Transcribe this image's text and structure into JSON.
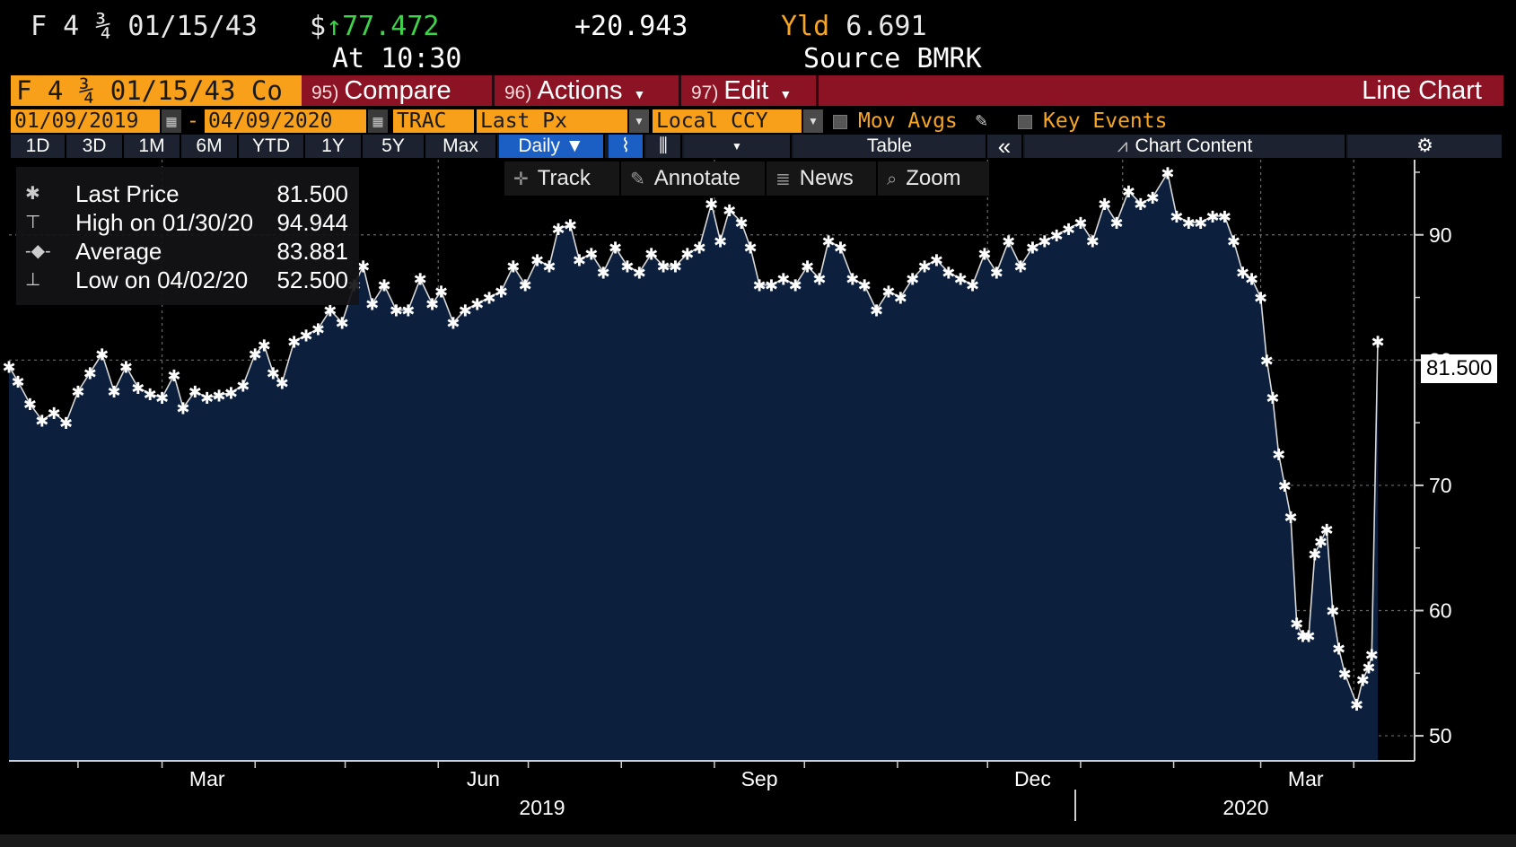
{
  "quote": {
    "security": "F 4 ¾ 01/15/43",
    "currency_symbol": "$",
    "last_price": "↑77.472",
    "change": "+20.943",
    "yield_label": "Yld",
    "yield_value": "6.691",
    "time": "At 10:30",
    "source": "Source BMRK"
  },
  "titlebar": {
    "ticker": "F 4 ¾ 01/15/43 Co",
    "compare_num": "95)",
    "compare": "Compare",
    "actions_num": "96)",
    "actions": "Actions",
    "edit_num": "97)",
    "edit": "Edit",
    "chart_type": "Line Chart"
  },
  "settings": {
    "start_date": "01/09/2019",
    "dash": "-",
    "end_date": "04/09/2020",
    "source": "TRAC",
    "field": "Last Px",
    "currency": "Local CCY",
    "mov_avgs": "Mov Avgs",
    "key_events": "Key Events"
  },
  "ranges": [
    "1D",
    "3D",
    "1M",
    "6M",
    "YTD",
    "1Y",
    "5Y",
    "Max"
  ],
  "period": "Daily ▼",
  "table_label": "Table",
  "chart_content_label": "Chart Content",
  "toolbar": {
    "track": "Track",
    "annotate": "Annotate",
    "news": "News",
    "zoom": "Zoom"
  },
  "legend": [
    {
      "icon": "✱",
      "label": "Last Price",
      "value": "81.500"
    },
    {
      "icon": "⊤",
      "label": "High on 01/30/20",
      "value": "94.944"
    },
    {
      "icon": "-◆-",
      "label": "Average",
      "value": "83.881"
    },
    {
      "icon": "⊥",
      "label": "Low on 04/02/20",
      "value": "52.500"
    }
  ],
  "price_tag": "81.500",
  "colors": {
    "fill": "#0c1f3d",
    "amber": "#f8a01a",
    "titlebar": "#8c1323",
    "green": "#3ed34a"
  },
  "chart_data": {
    "type": "area",
    "ylim": [
      48,
      96
    ],
    "y_ticks": [
      50,
      60,
      70,
      80,
      90
    ],
    "x_month_labels": [
      "Mar",
      "Jun",
      "Sep",
      "Dec",
      "Mar"
    ],
    "x_year_labels": [
      "2019",
      "2020"
    ],
    "grid": true,
    "x_start": "2019-01-09",
    "x_end": "2020-04-09",
    "series": [
      {
        "points": [
          [
            "2019-01-09",
            79.5
          ],
          [
            "2019-01-12",
            78.3
          ],
          [
            "2019-01-16",
            76.5
          ],
          [
            "2019-01-20",
            75.2
          ],
          [
            "2019-01-24",
            75.8
          ],
          [
            "2019-01-28",
            75.0
          ],
          [
            "2019-02-01",
            77.5
          ],
          [
            "2019-02-05",
            79.0
          ],
          [
            "2019-02-09",
            80.5
          ],
          [
            "2019-02-13",
            77.5
          ],
          [
            "2019-02-17",
            79.5
          ],
          [
            "2019-02-21",
            77.8
          ],
          [
            "2019-02-25",
            77.3
          ],
          [
            "2019-03-01",
            77.0
          ],
          [
            "2019-03-05",
            78.8
          ],
          [
            "2019-03-08",
            76.2
          ],
          [
            "2019-03-12",
            77.5
          ],
          [
            "2019-03-16",
            77.0
          ],
          [
            "2019-03-20",
            77.2
          ],
          [
            "2019-03-24",
            77.4
          ],
          [
            "2019-03-28",
            78.0
          ],
          [
            "2019-04-01",
            80.5
          ],
          [
            "2019-04-04",
            81.2
          ],
          [
            "2019-04-07",
            79.0
          ],
          [
            "2019-04-10",
            78.2
          ],
          [
            "2019-04-14",
            81.5
          ],
          [
            "2019-04-18",
            82.0
          ],
          [
            "2019-04-22",
            82.5
          ],
          [
            "2019-04-26",
            84.0
          ],
          [
            "2019-04-30",
            83.0
          ],
          [
            "2019-05-04",
            86.0
          ],
          [
            "2019-05-07",
            87.5
          ],
          [
            "2019-05-10",
            84.5
          ],
          [
            "2019-05-14",
            86.0
          ],
          [
            "2019-05-18",
            84.0
          ],
          [
            "2019-05-22",
            84.0
          ],
          [
            "2019-05-26",
            86.5
          ],
          [
            "2019-05-30",
            84.5
          ],
          [
            "2019-06-02",
            85.5
          ],
          [
            "2019-06-06",
            83.0
          ],
          [
            "2019-06-10",
            84.0
          ],
          [
            "2019-06-14",
            84.5
          ],
          [
            "2019-06-18",
            85.0
          ],
          [
            "2019-06-22",
            85.5
          ],
          [
            "2019-06-26",
            87.5
          ],
          [
            "2019-06-30",
            86.0
          ],
          [
            "2019-07-04",
            88.0
          ],
          [
            "2019-07-08",
            87.5
          ],
          [
            "2019-07-11",
            90.5
          ],
          [
            "2019-07-15",
            90.8
          ],
          [
            "2019-07-18",
            88.0
          ],
          [
            "2019-07-22",
            88.5
          ],
          [
            "2019-07-26",
            87.0
          ],
          [
            "2019-07-30",
            89.0
          ],
          [
            "2019-08-03",
            87.5
          ],
          [
            "2019-08-07",
            87.0
          ],
          [
            "2019-08-11",
            88.5
          ],
          [
            "2019-08-15",
            87.5
          ],
          [
            "2019-08-19",
            87.5
          ],
          [
            "2019-08-23",
            88.5
          ],
          [
            "2019-08-27",
            89.0
          ],
          [
            "2019-08-31",
            92.5
          ],
          [
            "2019-09-03",
            89.5
          ],
          [
            "2019-09-06",
            92.0
          ],
          [
            "2019-09-10",
            91.0
          ],
          [
            "2019-09-13",
            89.0
          ],
          [
            "2019-09-16",
            86.0
          ],
          [
            "2019-09-20",
            86.0
          ],
          [
            "2019-09-24",
            86.5
          ],
          [
            "2019-09-28",
            86.0
          ],
          [
            "2019-10-02",
            87.5
          ],
          [
            "2019-10-06",
            86.5
          ],
          [
            "2019-10-09",
            89.5
          ],
          [
            "2019-10-13",
            89.0
          ],
          [
            "2019-10-17",
            86.5
          ],
          [
            "2019-10-21",
            86.0
          ],
          [
            "2019-10-25",
            84.0
          ],
          [
            "2019-10-29",
            85.5
          ],
          [
            "2019-11-02",
            85.0
          ],
          [
            "2019-11-06",
            86.5
          ],
          [
            "2019-11-10",
            87.5
          ],
          [
            "2019-11-14",
            88.0
          ],
          [
            "2019-11-18",
            87.0
          ],
          [
            "2019-11-22",
            86.5
          ],
          [
            "2019-11-26",
            86.0
          ],
          [
            "2019-11-30",
            88.5
          ],
          [
            "2019-12-04",
            87.0
          ],
          [
            "2019-12-08",
            89.5
          ],
          [
            "2019-12-12",
            87.5
          ],
          [
            "2019-12-16",
            89.0
          ],
          [
            "2019-12-20",
            89.5
          ],
          [
            "2019-12-24",
            90.0
          ],
          [
            "2019-12-28",
            90.5
          ],
          [
            "2020-01-01",
            91.0
          ],
          [
            "2020-01-05",
            89.5
          ],
          [
            "2020-01-09",
            92.5
          ],
          [
            "2020-01-13",
            91.0
          ],
          [
            "2020-01-17",
            93.5
          ],
          [
            "2020-01-21",
            92.5
          ],
          [
            "2020-01-25",
            93.0
          ],
          [
            "2020-01-30",
            94.944
          ],
          [
            "2020-02-02",
            91.5
          ],
          [
            "2020-02-06",
            91.0
          ],
          [
            "2020-02-10",
            91.0
          ],
          [
            "2020-02-14",
            91.5
          ],
          [
            "2020-02-18",
            91.5
          ],
          [
            "2020-02-21",
            89.5
          ],
          [
            "2020-02-24",
            87.0
          ],
          [
            "2020-02-27",
            86.5
          ],
          [
            "2020-03-01",
            85.0
          ],
          [
            "2020-03-03",
            80.0
          ],
          [
            "2020-03-05",
            77.0
          ],
          [
            "2020-03-07",
            72.5
          ],
          [
            "2020-03-09",
            70.0
          ],
          [
            "2020-03-11",
            67.5
          ],
          [
            "2020-03-13",
            59.0
          ],
          [
            "2020-03-15",
            58.0
          ],
          [
            "2020-03-17",
            58.0
          ],
          [
            "2020-03-19",
            64.5
          ],
          [
            "2020-03-21",
            65.5
          ],
          [
            "2020-03-23",
            66.5
          ],
          [
            "2020-03-25",
            60.0
          ],
          [
            "2020-03-27",
            57.0
          ],
          [
            "2020-03-29",
            55.0
          ],
          [
            "2020-04-02",
            52.5
          ],
          [
            "2020-04-04",
            54.5
          ],
          [
            "2020-04-06",
            55.5
          ],
          [
            "2020-04-07",
            56.5
          ],
          [
            "2020-04-09",
            81.5
          ]
        ]
      }
    ]
  }
}
